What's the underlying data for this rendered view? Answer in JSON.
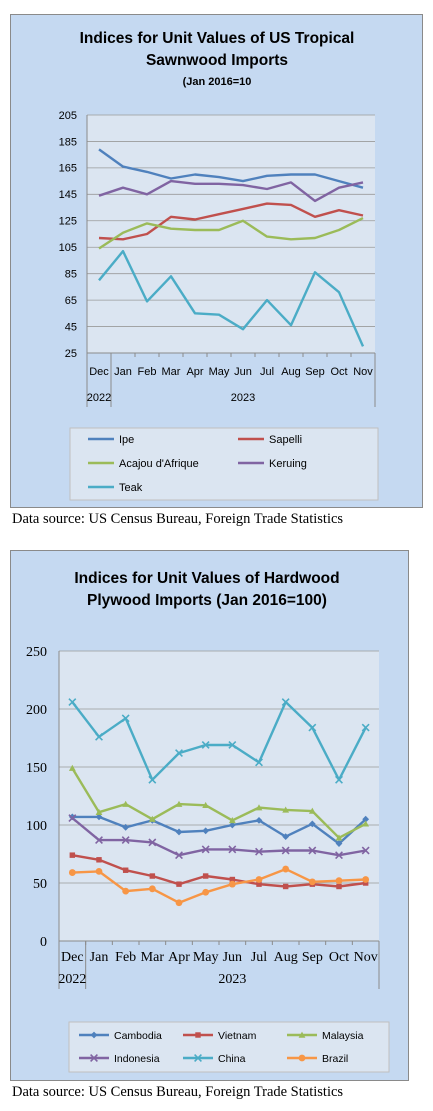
{
  "sources": [
    "Data source: US Census Bureau, Foreign Trade Statistics",
    "Data source: US Census Bureau, Foreign Trade Statistics"
  ],
  "chart_data": [
    {
      "type": "line",
      "title": "Indices for Unit Values of US Tropical Sawnwood Imports",
      "subtitle": "(Jan 2016=10",
      "categories": [
        "Dec",
        "Jan",
        "Feb",
        "Mar",
        "Apr",
        "May",
        "Jun",
        "Jul",
        "Aug",
        "Sep",
        "Oct",
        "Nov"
      ],
      "year_labels": [
        "2022",
        "2023"
      ],
      "yticks": [
        205,
        185,
        165,
        145,
        125,
        105,
        85,
        65,
        45,
        25
      ],
      "ylim": [
        25,
        205
      ],
      "grid": true,
      "legend_position": "bottom",
      "series": [
        {
          "name": "Ipe",
          "color": "#4f81bd",
          "values": [
            179,
            166,
            162,
            157,
            160,
            158,
            155,
            159,
            160,
            160,
            155,
            150
          ]
        },
        {
          "name": "Sapelli",
          "color": "#c0504d",
          "values": [
            112,
            111,
            115,
            128,
            126,
            130,
            134,
            138,
            137,
            128,
            133,
            129
          ]
        },
        {
          "name": "Acajou d'Afrique",
          "color": "#9bbb59",
          "values": [
            104,
            116,
            123,
            119,
            118,
            118,
            125,
            113,
            111,
            112,
            118,
            127
          ]
        },
        {
          "name": "Keruing",
          "color": "#8064a2",
          "values": [
            144,
            150,
            145,
            155,
            153,
            153,
            152,
            149,
            154,
            140,
            150,
            154
          ]
        },
        {
          "name": "Teak",
          "color": "#4bacc6",
          "values": [
            80,
            102,
            64,
            83,
            55,
            54,
            43,
            65,
            46,
            86,
            71,
            30
          ]
        }
      ]
    },
    {
      "type": "line",
      "title": "Indices for Unit Values of Hardwood Plywood Imports (Jan 2016=100)",
      "categories": [
        "Dec",
        "Jan",
        "Feb",
        "Mar",
        "Apr",
        "May",
        "Jun",
        "Jul",
        "Aug",
        "Sep",
        "Oct",
        "Nov"
      ],
      "year_labels": [
        "2022",
        "2023"
      ],
      "yticks": [
        250,
        200,
        150,
        100,
        50,
        0
      ],
      "ylim": [
        0,
        250
      ],
      "grid": true,
      "legend_position": "bottom",
      "series": [
        {
          "name": "Cambodia",
          "color": "#4f81bd",
          "marker": "diamond",
          "values": [
            107,
            107,
            98,
            104,
            94,
            95,
            100,
            104,
            90,
            101,
            84,
            105
          ]
        },
        {
          "name": "Vietnam",
          "color": "#c0504d",
          "marker": "square",
          "values": [
            74,
            70,
            61,
            56,
            49,
            56,
            53,
            49,
            47,
            49,
            47,
            50
          ]
        },
        {
          "name": "Malaysia",
          "color": "#9bbb59",
          "marker": "triangle",
          "values": [
            149,
            111,
            118,
            105,
            118,
            117,
            104,
            115,
            113,
            112,
            89,
            101
          ]
        },
        {
          "name": "Indonesia",
          "color": "#8064a2",
          "marker": "x",
          "values": [
            106,
            87,
            87,
            85,
            74,
            79,
            79,
            77,
            78,
            78,
            74,
            78
          ]
        },
        {
          "name": "China",
          "color": "#4bacc6",
          "marker": "x",
          "values": [
            206,
            176,
            192,
            139,
            162,
            169,
            169,
            154,
            206,
            184,
            139,
            184
          ]
        },
        {
          "name": "Brazil",
          "color": "#f79646",
          "marker": "circle",
          "values": [
            59,
            60,
            43,
            45,
            33,
            42,
            49,
            53,
            62,
            51,
            52,
            53
          ]
        }
      ]
    }
  ]
}
